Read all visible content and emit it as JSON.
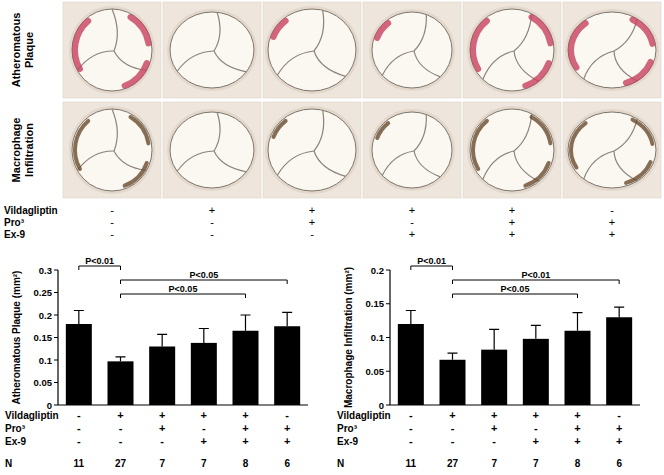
{
  "micrographs": {
    "row_labels": [
      [
        "Atheromatous",
        "Plaque"
      ],
      [
        "Macrophage",
        "Infiltration"
      ]
    ],
    "treatment_rows": [
      {
        "label": "Vildagliptin",
        "marks": [
          "-",
          "+",
          "+",
          "+",
          "+",
          "-"
        ]
      },
      {
        "label": "Pro³",
        "marks": [
          "-",
          "-",
          "+",
          "-",
          "+",
          "+"
        ]
      },
      {
        "label": "Ex-9",
        "marks": [
          "-",
          "-",
          "-",
          "+",
          "+",
          "+"
        ]
      }
    ]
  },
  "chart_data": [
    {
      "type": "bar",
      "ylabel": "Atheromatous Plaque (mm²)",
      "categories": [
        null,
        null,
        null,
        null,
        null,
        null
      ],
      "values": [
        0.18,
        0.097,
        0.13,
        0.138,
        0.165,
        0.175
      ],
      "errors": [
        0.03,
        0.01,
        0.027,
        0.032,
        0.035,
        0.031
      ],
      "color": "#000000",
      "ylim": [
        0,
        0.3
      ],
      "yticks": [
        0,
        0.05,
        0.1,
        0.15,
        0.2,
        0.25,
        0.3
      ],
      "annotations": [
        {
          "from": 0,
          "to": 1,
          "label": "P<0.01"
        },
        {
          "from": 1,
          "to": 5,
          "label": "P<0.05"
        },
        {
          "from": 1,
          "to": 4,
          "label": "P<0.05"
        }
      ],
      "treatment_table": {
        "rows": [
          {
            "label": "Vildagliptin",
            "marks": [
              "-",
              "+",
              "+",
              "+",
              "+",
              "-"
            ]
          },
          {
            "label": "Pro³",
            "marks": [
              "-",
              "-",
              "+",
              "-",
              "+",
              "+"
            ]
          },
          {
            "label": "Ex-9",
            "marks": [
              "-",
              "-",
              "-",
              "+",
              "+",
              "+"
            ]
          }
        ],
        "n_label": "N",
        "n": [
          11,
          27,
          7,
          7,
          8,
          6
        ]
      }
    },
    {
      "type": "bar",
      "ylabel": "Macrophage Infiltration (mm²)",
      "categories": [
        null,
        null,
        null,
        null,
        null,
        null
      ],
      "values": [
        0.12,
        0.067,
        0.082,
        0.098,
        0.11,
        0.13
      ],
      "errors": [
        0.02,
        0.01,
        0.03,
        0.02,
        0.027,
        0.015
      ],
      "color": "#000000",
      "ylim": [
        0,
        0.2
      ],
      "yticks": [
        0,
        0.05,
        0.1,
        0.15,
        0.2
      ],
      "annotations": [
        {
          "from": 0,
          "to": 1,
          "label": "P<0.01"
        },
        {
          "from": 1,
          "to": 5,
          "label": "P<0.01"
        },
        {
          "from": 1,
          "to": 4,
          "label": "P<0.05"
        }
      ],
      "treatment_table": {
        "rows": [
          {
            "label": "Vildagliptin",
            "marks": [
              "-",
              "+",
              "+",
              "+",
              "+",
              "-"
            ]
          },
          {
            "label": "Pro³",
            "marks": [
              "-",
              "-",
              "+",
              "-",
              "+",
              "+"
            ]
          },
          {
            "label": "Ex-9",
            "marks": [
              "-",
              "-",
              "-",
              "+",
              "+",
              "+"
            ]
          }
        ],
        "n_label": "N",
        "n": [
          11,
          27,
          7,
          7,
          8,
          6
        ]
      }
    }
  ]
}
